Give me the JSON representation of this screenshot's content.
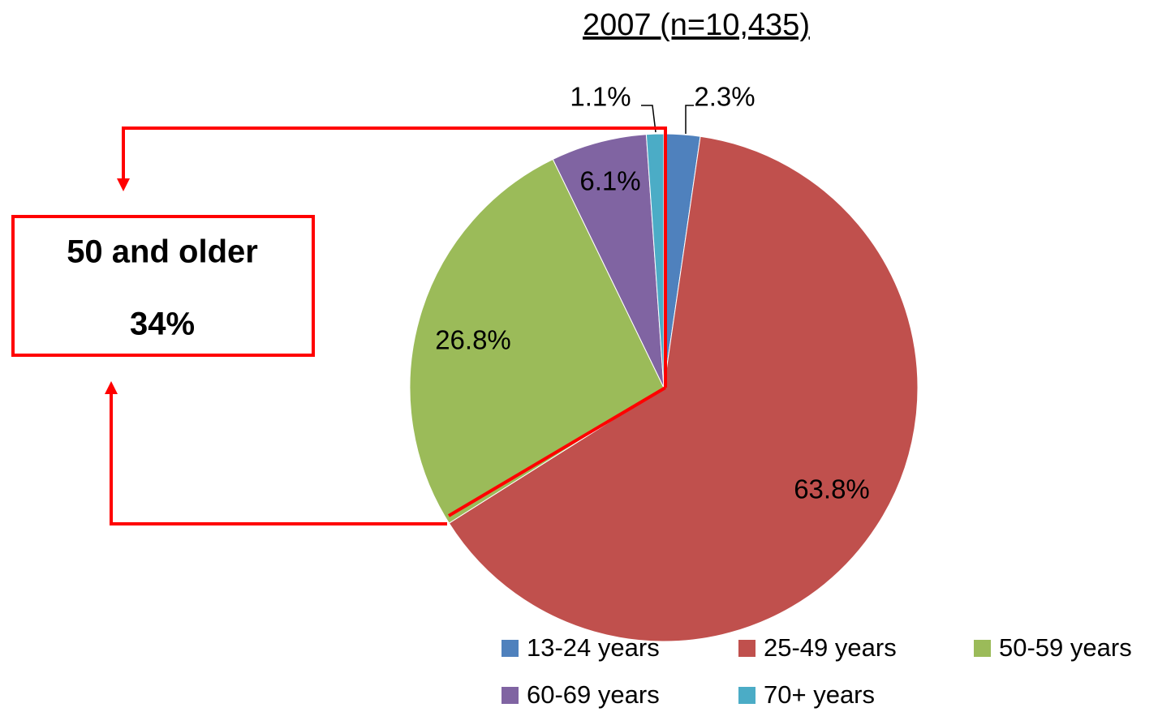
{
  "chart_data": {
    "type": "pie",
    "title": "2007 (n=10,435)",
    "categories": [
      "13-24 years",
      "25-49 years",
      "50-59 years",
      "60-69 years",
      "70+ years"
    ],
    "values": [
      2.3,
      63.8,
      26.8,
      6.1,
      1.1
    ],
    "value_labels": [
      "2.3%",
      "63.8%",
      "26.8%",
      "6.1%",
      "1.1%"
    ],
    "colors": [
      "#4f81bd",
      "#c0504d",
      "#9bbb59",
      "#8064a2",
      "#4bacc6"
    ],
    "annotation": {
      "label": "50 and older",
      "text": "34%"
    }
  }
}
